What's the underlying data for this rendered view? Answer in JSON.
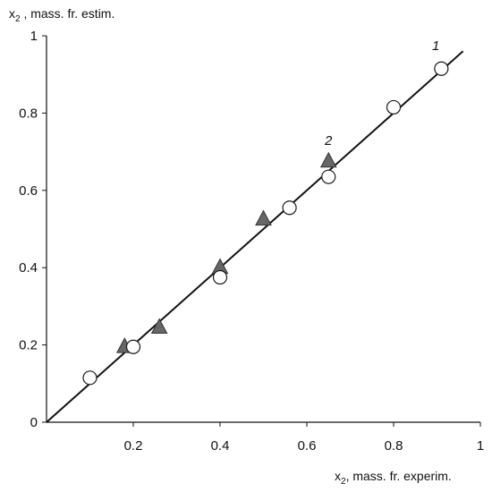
{
  "chart_data": {
    "type": "scatter",
    "xlabel": {
      "main": "x",
      "sub": "2",
      "rest": ", mass. fr. experim."
    },
    "ylabel": {
      "main": "x",
      "sub": "2",
      "rest": " , mass. fr. estim."
    },
    "xlim": [
      0,
      1
    ],
    "ylim": [
      0,
      1
    ],
    "x_ticks": [
      0.2,
      0.4,
      0.6,
      0.8,
      1
    ],
    "x_tick_labels": [
      "0.2",
      "0.4",
      "0.6",
      "0.8",
      "1"
    ],
    "y_ticks": [
      0,
      0.2,
      0.4,
      0.6,
      0.8,
      1
    ],
    "y_tick_labels": [
      "0",
      "0.2",
      "0.4",
      "0.6",
      "0.8",
      "1"
    ],
    "grid": false,
    "legend": "none",
    "fit_line": {
      "x": [
        0,
        0.96
      ],
      "y": [
        0,
        0.96
      ]
    },
    "series": [
      {
        "name": "1",
        "marker": "circle",
        "x": [
          0.1,
          0.2,
          0.4,
          0.56,
          0.65,
          0.8,
          0.91
        ],
        "y": [
          0.115,
          0.195,
          0.375,
          0.555,
          0.635,
          0.815,
          0.915
        ]
      },
      {
        "name": "2",
        "marker": "triangle",
        "x": [
          0.18,
          0.26,
          0.4,
          0.5,
          0.65
        ],
        "y": [
          0.195,
          0.245,
          0.4,
          0.525,
          0.675
        ]
      }
    ],
    "colors": {
      "circle_fill": "#ffffff",
      "triangle_fill": "#666666",
      "stroke": "#1a1a1a"
    }
  }
}
